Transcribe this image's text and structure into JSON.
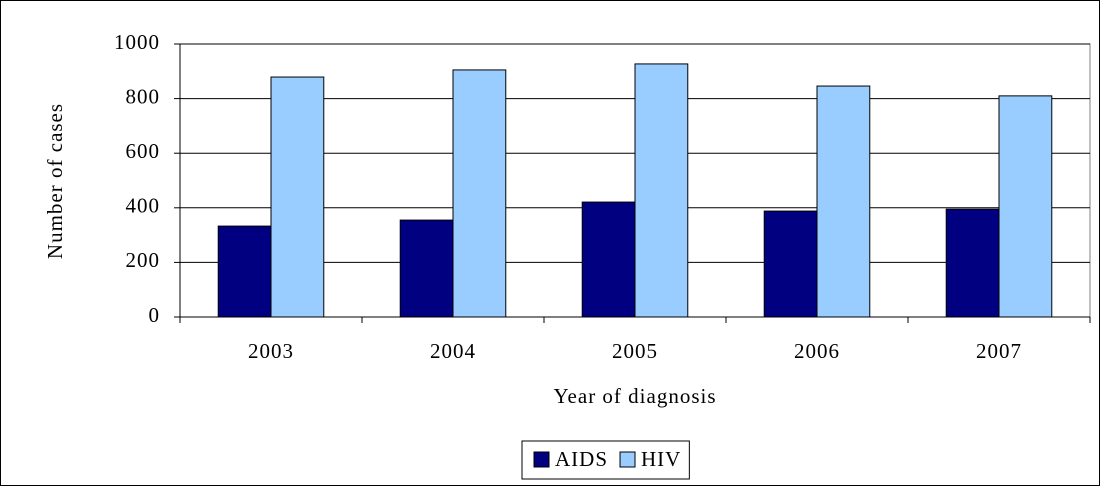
{
  "chart_data": {
    "type": "bar",
    "categories": [
      "2003",
      "2004",
      "2005",
      "2006",
      "2007"
    ],
    "series": [
      {
        "name": "AIDS",
        "color": "#000080",
        "values": [
          333,
          355,
          421,
          388,
          395
        ]
      },
      {
        "name": "HIV",
        "color": "#99ccff",
        "values": [
          879,
          905,
          927,
          846,
          810
        ]
      }
    ],
    "xlabel": "Year of diagnosis",
    "ylabel": "Number of cases",
    "ylim": [
      0,
      1000
    ],
    "yticks": [
      0,
      200,
      400,
      600,
      800,
      1000
    ],
    "grid": true,
    "legend": "bottom"
  }
}
